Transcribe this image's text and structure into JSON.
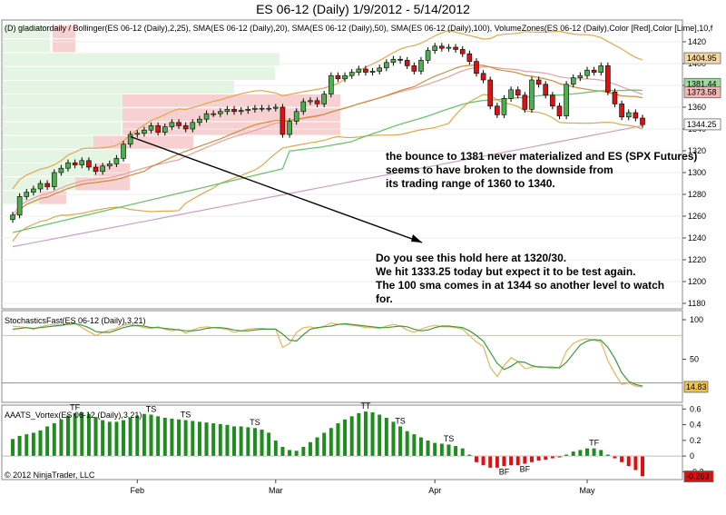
{
  "chart_data": {
    "type": "candlestick",
    "title": "ES 06-12 (Daily)  1/9/2012 - 5/14/2012",
    "price_panel": {
      "header": "(D) gladiatordaily  / Bollinger(ES 06-12 (Daily),2,25), SMA(ES 06-12 (Daily),20), SMA(ES 06-12 (Daily),50), SMA(ES 06-12 (Daily),100), VolumeZones(ES 06-12 (Daily),Color [Red],Color [Lime],10,f",
      "y_range": [
        1175,
        1440
      ],
      "y_ticks": [
        1180,
        1200,
        1220,
        1240,
        1260,
        1280,
        1300,
        1320,
        1340,
        1360,
        1380,
        1400,
        1420
      ],
      "price_tags": [
        {
          "label": "1404.95",
          "value": 1404.95,
          "color": "#f4d9a6"
        },
        {
          "label": "1381.44",
          "value": 1381.44,
          "color": "#9fd89f"
        },
        {
          "label": "1373.58",
          "value": 1373.58,
          "color": "#f2b6b6"
        },
        {
          "label": "1344.25",
          "value": 1344.25,
          "color": "#ffffff"
        }
      ],
      "closes": [
        1261,
        1278,
        1282,
        1285,
        1290,
        1287,
        1300,
        1304,
        1309,
        1307,
        1311,
        1305,
        1301,
        1306,
        1308,
        1313,
        1326,
        1335,
        1336,
        1339,
        1343,
        1337,
        1342,
        1346,
        1343,
        1340,
        1346,
        1349,
        1354,
        1354,
        1356,
        1358,
        1356,
        1357,
        1358,
        1359,
        1359,
        1359,
        1360,
        1335,
        1347,
        1356,
        1365,
        1366,
        1363,
        1372,
        1389,
        1386,
        1389,
        1392,
        1395,
        1392,
        1393,
        1396,
        1401,
        1404,
        1403,
        1398,
        1393,
        1403,
        1412,
        1416,
        1414,
        1415,
        1413,
        1409,
        1402,
        1391,
        1385,
        1361,
        1353,
        1368,
        1376,
        1371,
        1358,
        1385,
        1381,
        1371,
        1361,
        1352,
        1381,
        1387,
        1389,
        1394,
        1392,
        1398,
        1374,
        1363,
        1351,
        1355,
        1350,
        1344
      ]
    },
    "stochastics_panel": {
      "header": "StochasticsFast(ES 06-12 (Daily),3,21)",
      "y_ticks": [
        50,
        100
      ],
      "upper_line": 80,
      "lower_line": 20,
      "last_value_label": "14.83",
      "k": [
        92,
        91,
        90,
        88,
        91,
        93,
        94,
        93,
        95,
        96,
        90,
        85,
        80,
        84,
        87,
        89,
        93,
        94,
        92,
        90,
        89,
        91,
        88,
        86,
        88,
        83,
        87,
        90,
        91,
        90,
        89,
        88,
        84,
        86,
        88,
        89,
        89,
        88,
        88,
        65,
        70,
        84,
        90,
        91,
        89,
        92,
        96,
        94,
        94,
        93,
        92,
        90,
        90,
        89,
        92,
        94,
        92,
        87,
        84,
        88,
        91,
        93,
        91,
        91,
        90,
        88,
        80,
        72,
        66,
        40,
        28,
        42,
        52,
        47,
        38,
        40,
        41,
        40,
        38,
        40,
        60,
        70,
        74,
        76,
        74,
        72,
        48,
        32,
        18,
        20,
        16,
        15
      ],
      "d": [
        88,
        89,
        90,
        89,
        90,
        91,
        92,
        93,
        94,
        95,
        93,
        90,
        85,
        84,
        84,
        87,
        90,
        92,
        93,
        92,
        90,
        90,
        89,
        88,
        87,
        86,
        86,
        87,
        89,
        90,
        90,
        89,
        87,
        86,
        86,
        87,
        88,
        88,
        88,
        82,
        74,
        73,
        81,
        88,
        90,
        91,
        92,
        94,
        95,
        94,
        93,
        92,
        91,
        90,
        90,
        91,
        92,
        91,
        88,
        86,
        87,
        90,
        92,
        92,
        91,
        90,
        86,
        80,
        73,
        59,
        45,
        37,
        41,
        47,
        46,
        42,
        40,
        40,
        40,
        39,
        46,
        57,
        68,
        73,
        75,
        74,
        65,
        51,
        33,
        22,
        18,
        16
      ]
    },
    "vortex_panel": {
      "header": "AAATS_Vortex(ES 06-12 (Daily),3,21)",
      "y_ticks": [
        -0.2,
        0,
        0.2,
        0.4,
        0.6
      ],
      "last_value_label": "-0.263",
      "values": [
        0.22,
        0.26,
        0.28,
        0.3,
        0.33,
        0.38,
        0.42,
        0.47,
        0.52,
        0.55,
        0.56,
        0.54,
        0.5,
        0.46,
        0.44,
        0.44,
        0.46,
        0.49,
        0.52,
        0.54,
        0.53,
        0.51,
        0.49,
        0.48,
        0.47,
        0.46,
        0.45,
        0.44,
        0.43,
        0.42,
        0.41,
        0.4,
        0.38,
        0.38,
        0.37,
        0.36,
        0.34,
        0.3,
        0.2,
        0.12,
        0.08,
        0.07,
        0.12,
        0.18,
        0.24,
        0.3,
        0.36,
        0.42,
        0.47,
        0.51,
        0.55,
        0.57,
        0.56,
        0.53,
        0.49,
        0.44,
        0.38,
        0.32,
        0.28,
        0.24,
        0.2,
        0.17,
        0.16,
        0.15,
        0.13,
        0.1,
        0.02,
        -0.08,
        -0.12,
        -0.15,
        -0.15,
        -0.13,
        -0.12,
        -0.12,
        -0.1,
        -0.08,
        -0.06,
        -0.05,
        -0.03,
        -0.02,
        0.02,
        0.06,
        0.08,
        0.1,
        0.1,
        0.08,
        0.02,
        -0.03,
        -0.08,
        -0.13,
        -0.18,
        -0.26
      ],
      "labels": [
        {
          "text": "TF",
          "i": 9
        },
        {
          "text": "TS",
          "i": 20
        },
        {
          "text": "TS",
          "i": 25
        },
        {
          "text": "TS",
          "i": 35
        },
        {
          "text": "TT",
          "i": 51
        },
        {
          "text": "TS",
          "i": 56
        },
        {
          "text": "TS",
          "i": 63
        },
        {
          "text": "BF",
          "i": 71
        },
        {
          "text": "BF",
          "i": 74
        },
        {
          "text": "TF",
          "i": 84
        }
      ]
    },
    "x_ticks": [
      "Feb",
      "Mar",
      "Apr",
      "May"
    ],
    "annotations": [
      "the bounce to 1381 never materialized and ES (SPX Futures)",
      "seems to have broken to the downside from",
      "its trading range of 1360 to 1340.",
      "Do you see this hold here at 1320/30.",
      "We hit 1333.25 today but expect it to be test again.",
      "The 100 sma comes in at 1344 so another level to watch",
      "for."
    ],
    "copyright": "© 2012 NinjaTrader, LLC"
  }
}
